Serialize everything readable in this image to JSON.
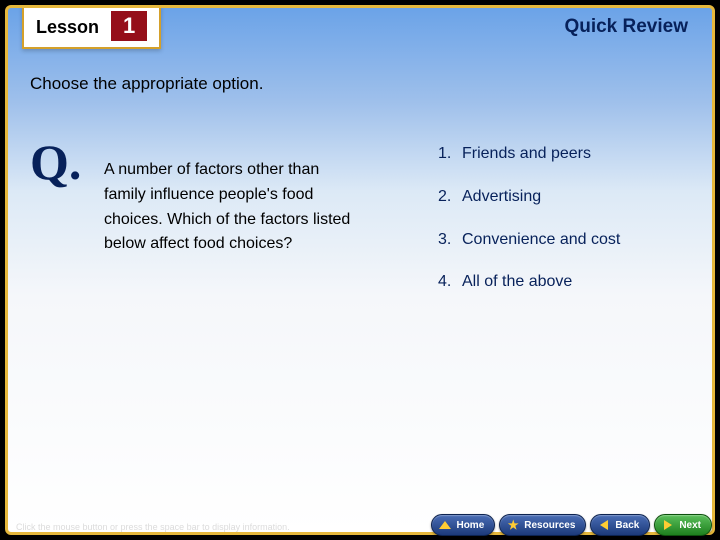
{
  "colors": {
    "frame_gold": "#e6b83c",
    "lesson_red": "#950f1a",
    "heading_navy": "#07215a",
    "option_navy": "#07215a",
    "nav_blue_top": "#4a6db5",
    "nav_blue_bottom": "#1c3a7a",
    "nav_green_top": "#5bbf5b",
    "nav_green_bottom": "#1e801e",
    "bg_sky_top": "#6ba3e8",
    "bg_white": "#ffffff"
  },
  "fontsizes": {
    "lesson_word": 18,
    "lesson_num": 22,
    "quick_review": 19,
    "instruction": 17,
    "q_mark": 50,
    "body": 16,
    "nav": 10,
    "hint": 9
  },
  "lesson": {
    "word": "Lesson",
    "number": "1"
  },
  "header": {
    "quick_review": "Quick Review"
  },
  "instruction": "Choose the appropriate option.",
  "question": {
    "mark": "Q.",
    "text": "A number of factors other than family influence people's food choices. Which of the factors listed below affect food choices?"
  },
  "options": [
    {
      "num": "1.",
      "label": "Friends and peers"
    },
    {
      "num": "2.",
      "label": "Advertising"
    },
    {
      "num": "3.",
      "label": "Convenience and cost"
    },
    {
      "num": "4.",
      "label": "All of the above"
    }
  ],
  "footer_hint": "Click the mouse button or press the space bar to display information.",
  "nav": {
    "home": "Home",
    "resources": "Resources",
    "back": "Back",
    "next": "Next"
  }
}
